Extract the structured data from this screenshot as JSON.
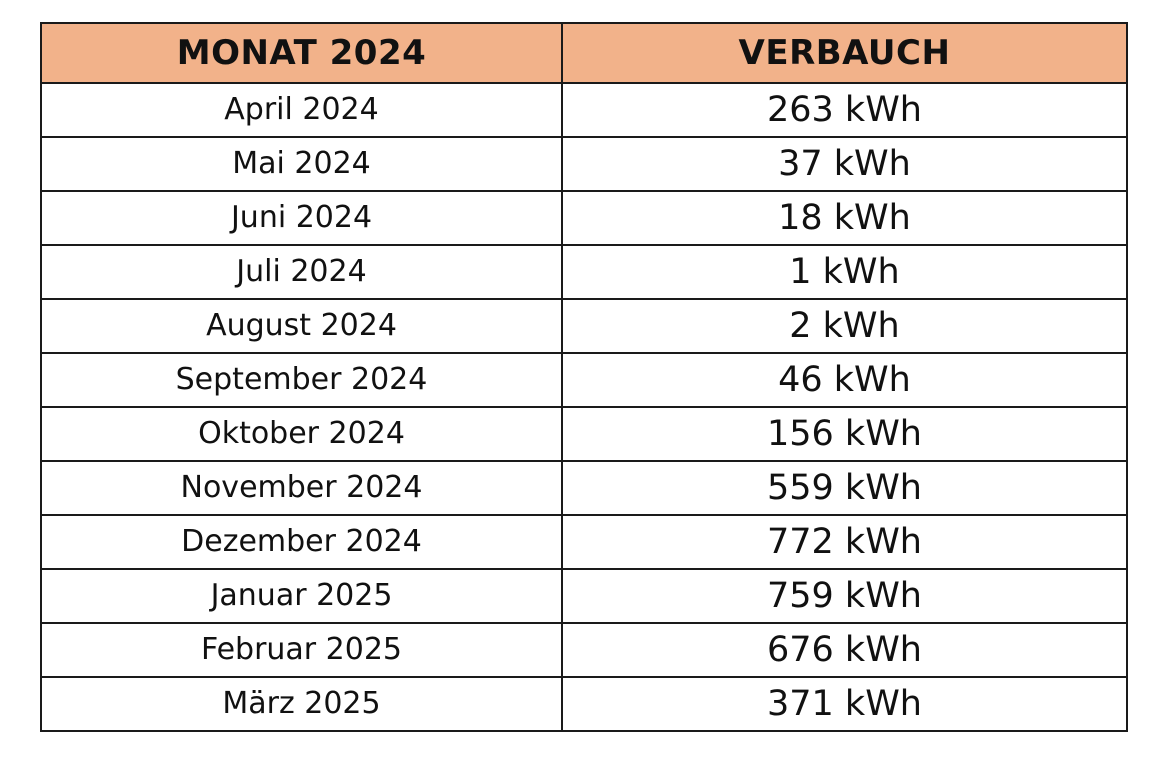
{
  "table": {
    "headers": {
      "month": "MONAT 2024",
      "consumption": "VERBAUCH"
    },
    "header_color": "#f2b28a",
    "rows": [
      {
        "month": "April 2024",
        "consumption": "263 kWh"
      },
      {
        "month": "Mai 2024",
        "consumption": "37 kWh"
      },
      {
        "month": "Juni 2024",
        "consumption": "18 kWh"
      },
      {
        "month": "Juli 2024",
        "consumption": "1 kWh"
      },
      {
        "month": "August 2024",
        "consumption": "2 kWh"
      },
      {
        "month": "September 2024",
        "consumption": "46 kWh"
      },
      {
        "month": "Oktober 2024",
        "consumption": "156 kWh"
      },
      {
        "month": "November 2024",
        "consumption": "559 kWh"
      },
      {
        "month": "Dezember 2024",
        "consumption": "772 kWh"
      },
      {
        "month": "Januar 2025",
        "consumption": "759 kWh"
      },
      {
        "month": "Februar 2025",
        "consumption": "676 kWh"
      },
      {
        "month": "März 2025",
        "consumption": "371 kWh"
      }
    ]
  }
}
